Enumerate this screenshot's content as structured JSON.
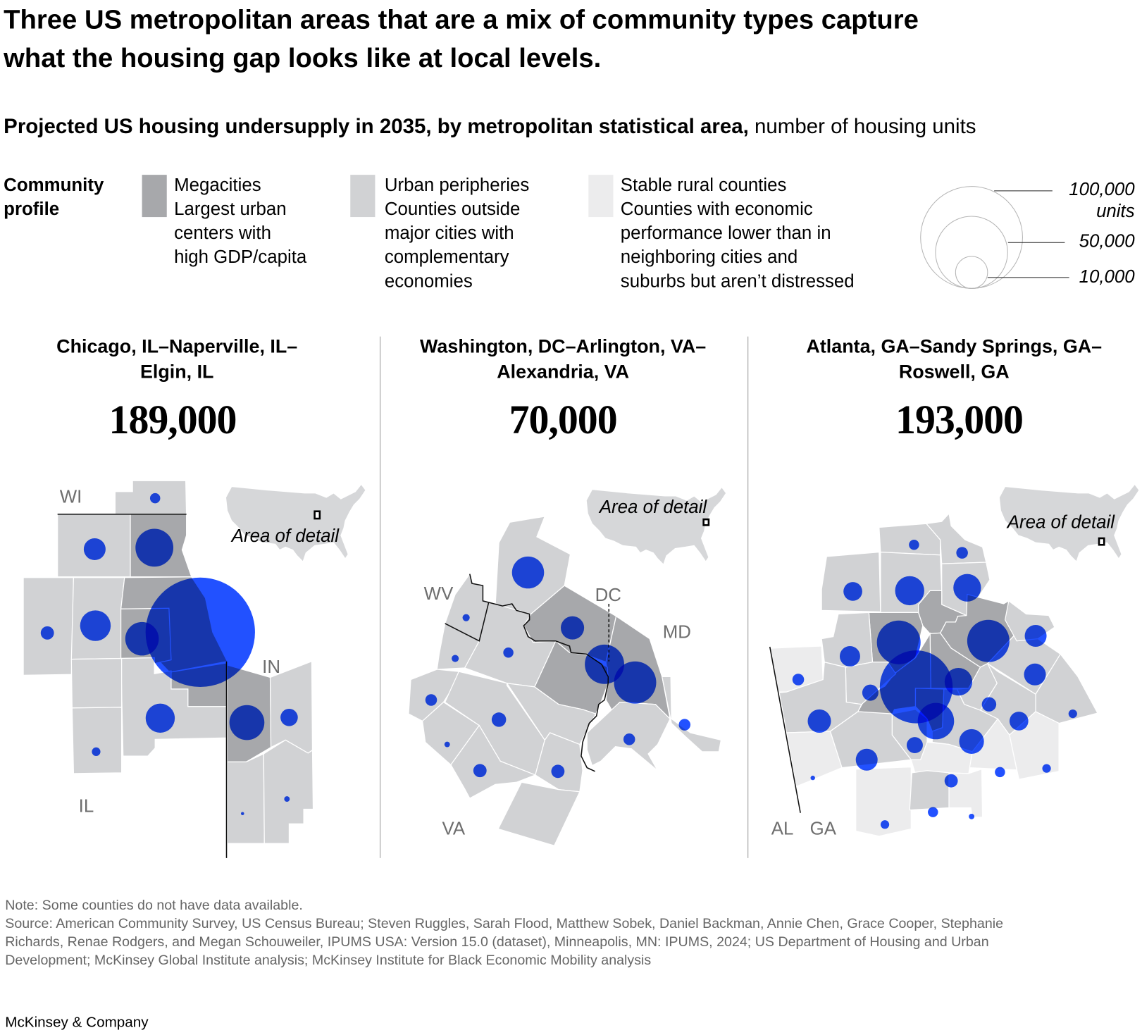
{
  "title": {
    "lines": [
      "Three US metropolitan areas that are a mix of community types capture",
      "what the housing gap looks like at local levels."
    ]
  },
  "subtitle": {
    "bold": "Projected US housing undersupply in 2035, by metropolitan statistical area,",
    "regular": " number of housing units"
  },
  "legend": {
    "heading_lines": [
      "Community",
      "profile"
    ],
    "categories": [
      {
        "label": "Megacities",
        "description_lines": [
          "Largest urban",
          "centers with",
          "high GDP/capita"
        ],
        "color": "#a7a8ab"
      },
      {
        "label": "Urban peripheries",
        "description_lines": [
          "Counties outside",
          "major cities with",
          "complementary",
          "economies"
        ],
        "color": "#d1d2d4"
      },
      {
        "label": "Stable rural counties",
        "description_lines": [
          "Counties with economic",
          "performance lower than in",
          "neighboring cities and",
          "suburbs but aren’t distressed"
        ],
        "color": "#ececed"
      }
    ],
    "bubble_scale": [
      {
        "value": 100000,
        "label": "100,000",
        "sublabel": "units"
      },
      {
        "value": 50000,
        "label": "50,000"
      },
      {
        "value": 10000,
        "label": "10,000"
      }
    ]
  },
  "colors": {
    "bubble": "#2251ff",
    "megacity": "#a7a8ab",
    "urban_periphery": "#d1d2d4",
    "stable_rural": "#ececed"
  },
  "inset_label": "Area of detail",
  "metros": [
    {
      "name_lines": [
        "Chicago, IL–Naperville, IL–",
        "Elgin, IL"
      ],
      "total": "189,000",
      "state_labels": [
        "WI",
        "IL",
        "IN"
      ],
      "county_undersupply_units": [
        1000,
        4600,
        13800,
        1700,
        9000,
        10800,
        115000,
        8200,
        11800,
        2900,
        700,
        300,
        100
      ]
    },
    {
      "name_lines": [
        "Washington, DC–Arlington, VA–",
        "Alexandria, VA"
      ],
      "total": "70,000",
      "state_labels": [
        "WV",
        "DC",
        "MD",
        "VA"
      ],
      "county_undersupply_units": [
        9900,
        500,
        5200,
        500,
        1000,
        14900,
        17200,
        1300,
        2000,
        1300,
        300,
        1300,
        1700,
        1700
      ]
    },
    {
      "name_lines": [
        "Atlanta, GA–Sandy Springs, GA–",
        "Roswell, GA"
      ],
      "total": "193,000",
      "state_labels": [
        "AL",
        "GA"
      ],
      "county_undersupply_units": [
        1000,
        1300,
        3400,
        8200,
        7400,
        18400,
        17200,
        4600,
        4000,
        1300,
        2500,
        51000,
        7400,
        4600,
        2000,
        12800,
        5200,
        3400,
        700,
        5900,
        2500,
        4600,
        1000,
        700,
        1700,
        200,
        1000,
        700,
        300
      ]
    }
  ],
  "footer": {
    "note": "Note: Some counties do not have data available.",
    "source_lines": [
      "Source: American Community Survey, US Census Bureau; Steven Ruggles, Sarah Flood, Matthew Sobek, Daniel Backman, Annie Chen, Grace Cooper, Stephanie",
      "Richards, Renae Rodgers, and Megan Schouweiler, IPUMS USA: Version 15.0 (dataset), Minneapolis, MN: IPUMS, 2024; US Department of Housing and Urban",
      "Development; McKinsey Global Institute analysis; McKinsey Institute for Black Economic Mobility analysis"
    ],
    "brand": "McKinsey & Company"
  }
}
